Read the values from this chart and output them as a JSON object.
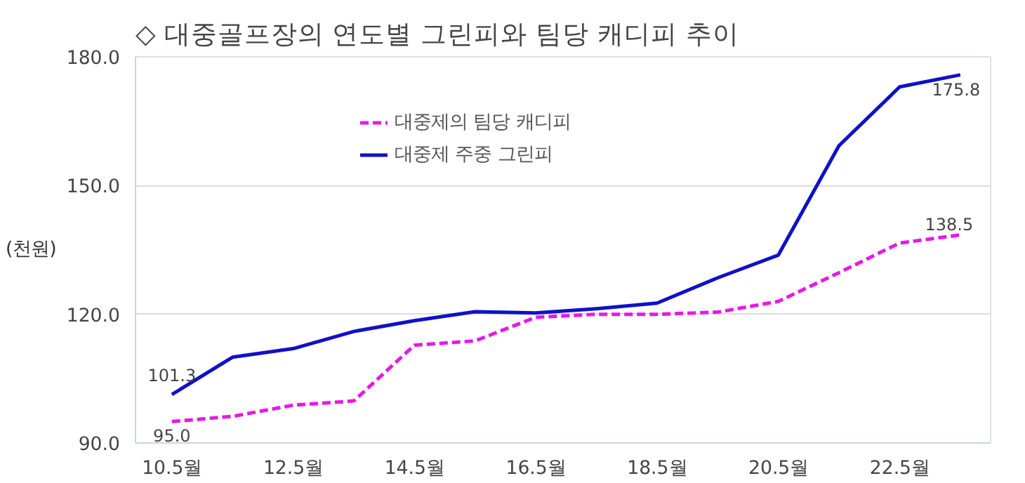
{
  "chart_data": {
    "type": "line",
    "title": "◇ 대중골프장의 연도별 그린피와 팀당 캐디피 추이",
    "ylabel": "(천원)",
    "categories": [
      "10.5월",
      null,
      "12.5월",
      null,
      "14.5월",
      null,
      "16.5월",
      null,
      "18.5월",
      null,
      "20.5월",
      null,
      "22.5월",
      null
    ],
    "series": [
      {
        "name": "대중제의 팀당 캐디피",
        "color": "#e619e6",
        "line_style": "dashed",
        "values": [
          95.0,
          96.2,
          98.8,
          99.8,
          112.8,
          113.8,
          119.3,
          120.0,
          120.0,
          120.5,
          123.0,
          129.7,
          136.6,
          138.5
        ],
        "value_labels": [
          "95.0",
          null,
          null,
          null,
          null,
          null,
          null,
          null,
          null,
          null,
          null,
          null,
          null,
          "138.5"
        ]
      },
      {
        "name": "대중제 주중 그린피",
        "color": "#1010c8",
        "line_style": "solid",
        "values": [
          101.3,
          110.0,
          112.0,
          116.0,
          118.5,
          120.6,
          120.3,
          121.3,
          122.6,
          128.5,
          133.8,
          159.3,
          173.0,
          175.8
        ],
        "value_labels": [
          "101.3",
          null,
          null,
          null,
          null,
          null,
          null,
          null,
          null,
          null,
          null,
          null,
          null,
          "175.8"
        ]
      }
    ],
    "ylim": [
      90,
      180
    ],
    "yticks": [
      {
        "value": 90,
        "label": "90.0"
      },
      {
        "value": 120,
        "label": "120.0"
      },
      {
        "value": 150,
        "label": "150.0"
      },
      {
        "value": 180,
        "label": "180.0"
      }
    ],
    "grid": "y",
    "legend": "top",
    "marker": "none"
  }
}
